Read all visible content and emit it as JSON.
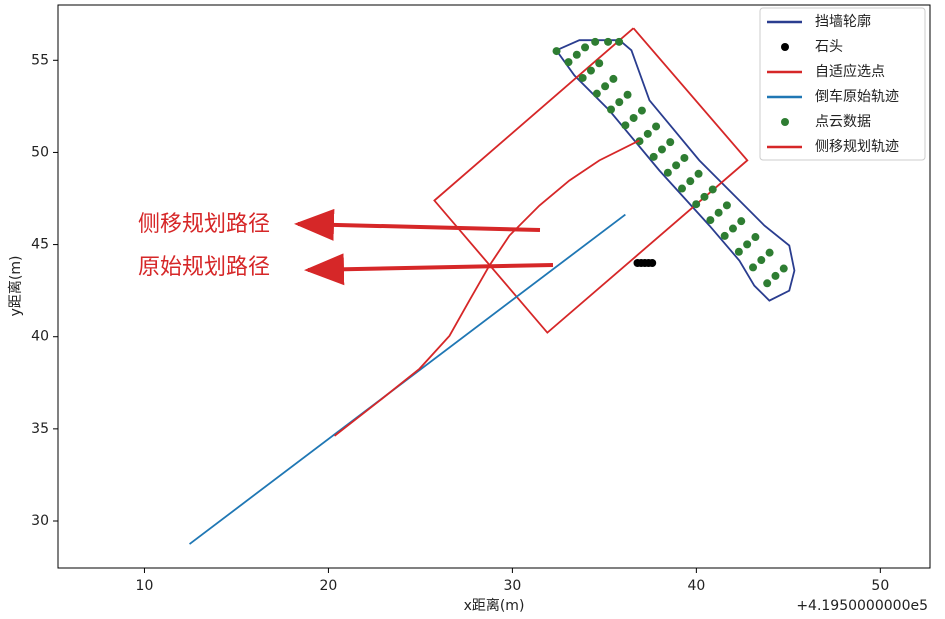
{
  "chart_data": {
    "type": "line",
    "xlabel": "x距离(m)",
    "ylabel": "y距离(m)",
    "x_offset_label": "+4.1950000000e5",
    "xlim": [
      5.3,
      52.7
    ],
    "ylim": [
      27.45,
      58.0
    ],
    "xticks": [
      10,
      20,
      30,
      40,
      50
    ],
    "yticks": [
      30,
      35,
      40,
      45,
      50,
      55
    ],
    "grid": false,
    "legend": "upper right",
    "annotations": [
      {
        "text": "侧移规划路径"
      },
      {
        "text": "原始规划路径"
      }
    ],
    "series": [
      {
        "name": "挡墙轮廓",
        "type": "line",
        "color": "#2a3d8f",
        "x": [
          32.39,
          33.64,
          35.82,
          36.47,
          37.45,
          40.16,
          42.34,
          43.7,
          45.05,
          45.33,
          45.05,
          43.97,
          43.15,
          42.34,
          40.71,
          37.99,
          35.27,
          33.37,
          32.39
        ],
        "y": [
          55.54,
          56.09,
          56.09,
          55.54,
          52.83,
          49.57,
          47.39,
          46.03,
          44.95,
          43.59,
          42.5,
          41.96,
          42.77,
          44.13,
          46.03,
          49.02,
          52.28,
          54.18,
          55.54
        ]
      },
      {
        "name": "石头",
        "type": "scatter",
        "color": "#000000",
        "x": [
          36.8,
          37.0,
          37.2,
          37.4,
          37.6
        ],
        "y": [
          44.0,
          44.0,
          44.0,
          44.0,
          44.0
        ]
      },
      {
        "name": "自适应选点",
        "type": "line",
        "color": "#d62728",
        "x": [
          36.58,
          42.77,
          31.9,
          25.76,
          36.58
        ],
        "y": [
          56.74,
          49.57,
          40.22,
          47.39,
          56.74
        ]
      },
      {
        "name": "倒车原始轨迹",
        "type": "line",
        "color": "#1f77b4",
        "x": [
          12.45,
          36.14
        ],
        "y": [
          28.75,
          46.63
        ]
      },
      {
        "name": "点云数据",
        "type": "scatter",
        "color": "#2e7d32",
        "x": [
          33.5,
          34.27,
          35.04,
          35.81,
          36.59,
          37.36,
          38.13,
          38.9,
          39.67,
          40.44,
          41.21,
          41.99,
          42.76,
          43.53,
          44.3,
          33.95,
          34.72,
          35.49,
          36.26,
          37.04,
          37.81,
          38.58,
          39.35,
          40.12,
          40.89,
          41.66,
          42.44,
          43.21,
          43.98,
          44.75,
          33.05,
          33.82,
          34.59,
          35.36,
          36.14,
          36.91,
          37.68,
          38.45,
          39.22,
          39.99,
          40.76,
          41.54,
          42.31,
          43.08,
          43.85,
          34.5,
          35.2,
          35.8,
          32.4
        ],
        "y": [
          55.3,
          54.44,
          53.59,
          52.73,
          51.87,
          51.01,
          50.16,
          49.3,
          48.44,
          47.59,
          46.73,
          45.87,
          45.01,
          44.16,
          43.3,
          55.7,
          54.84,
          53.99,
          53.13,
          52.27,
          51.41,
          50.56,
          49.7,
          48.84,
          47.99,
          47.13,
          46.27,
          45.41,
          44.56,
          43.7,
          54.9,
          54.04,
          53.19,
          52.33,
          51.47,
          50.61,
          49.76,
          48.9,
          48.04,
          47.19,
          46.33,
          45.47,
          44.61,
          43.76,
          42.9,
          56.0,
          56.0,
          56.0,
          55.5
        ]
      },
      {
        "name": "侧移规划轨迹",
        "type": "line",
        "color": "#d62728",
        "x": [
          20.33,
          22.77,
          24.95,
          26.58,
          27.66,
          28.75,
          29.84,
          31.47,
          33.1,
          34.73,
          36.9
        ],
        "y": [
          34.62,
          36.52,
          38.26,
          40.05,
          41.96,
          43.86,
          45.49,
          47.12,
          48.48,
          49.57,
          50.65
        ]
      }
    ]
  }
}
